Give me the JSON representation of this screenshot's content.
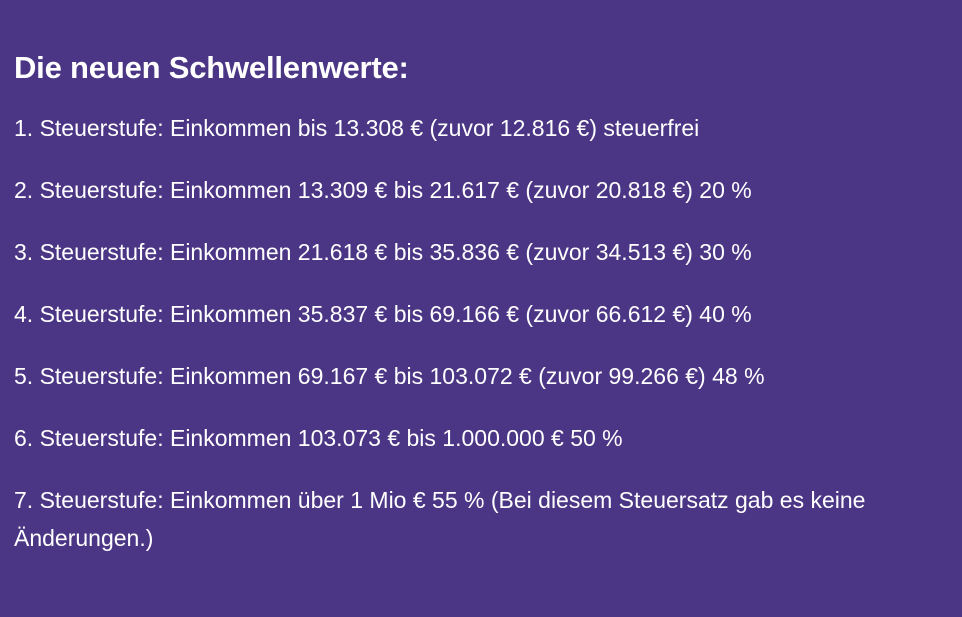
{
  "section": {
    "heading": "Die neuen Schwellenwerte:",
    "tiers": [
      "1. Steuerstufe: Einkommen bis 13.308 € (zuvor 12.816 €) steuerfrei",
      "2. Steuerstufe: Einkommen 13.309 € bis 21.617 € (zuvor 20.818 €) 20 %",
      "3. Steuerstufe: Einkommen 21.618 € bis 35.836 € (zuvor 34.513 €) 30 %",
      "4. Steuerstufe: Einkommen 35.837 € bis 69.166 € (zuvor 66.612 €) 40 %",
      "5. Steuerstufe: Einkommen 69.167 € bis 103.072 € (zuvor 99.266 €) 48 %",
      "6. Steuerstufe: Einkommen 103.073 € bis 1.000.000 € 50 %",
      "7. Steuerstufe: Einkommen über 1 Mio € 55 % (Bei diesem Steuersatz gab es keine Änderungen.)"
    ]
  },
  "colors": {
    "background": "#4b3585",
    "text": "#ffffff"
  }
}
